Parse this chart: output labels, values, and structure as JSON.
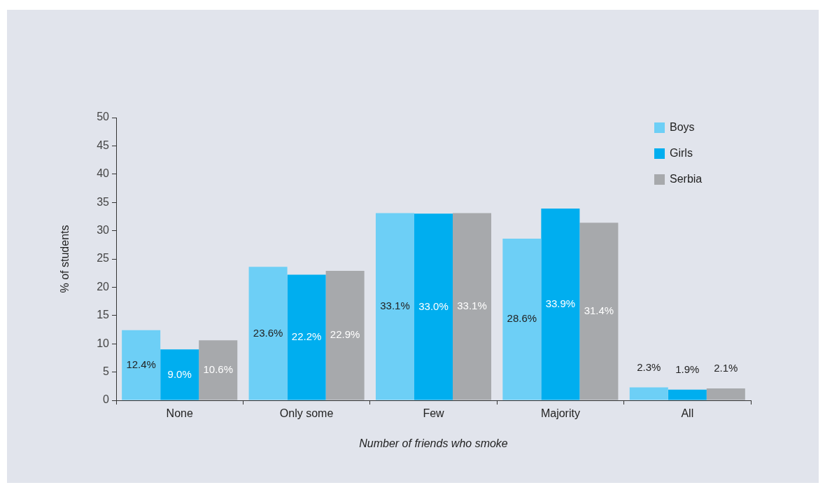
{
  "chart_data": {
    "type": "bar",
    "xlabel": "Number of friends who smoke",
    "ylabel": "% of students",
    "categories": [
      "None",
      "Only some",
      "Few",
      "Majority",
      "All"
    ],
    "series": [
      {
        "name": "Boys",
        "color": "#6dcff6",
        "values": [
          12.4,
          23.6,
          33.1,
          28.6,
          2.3
        ],
        "value_labels": [
          "12.4%",
          "23.6%",
          "33.1%",
          "28.6%",
          "2.3%"
        ]
      },
      {
        "name": "Girls",
        "color": "#00aeef",
        "values": [
          9.0,
          22.2,
          33.0,
          33.9,
          1.9
        ],
        "value_labels": [
          "9.0%",
          "22.2%",
          "33.0%",
          "33.9%",
          "1.9%"
        ]
      },
      {
        "name": "Serbia",
        "color": "#a7a9ac",
        "values": [
          10.6,
          22.9,
          33.1,
          31.4,
          2.1
        ],
        "value_labels": [
          "10.6%",
          "22.9%",
          "33.1%",
          "31.4%",
          "2.1%"
        ]
      }
    ],
    "ylim": [
      0,
      50
    ],
    "yticks": [
      0,
      5,
      10,
      15,
      20,
      25,
      30,
      35,
      40,
      45,
      50
    ],
    "grid": false,
    "legend": "top right"
  }
}
